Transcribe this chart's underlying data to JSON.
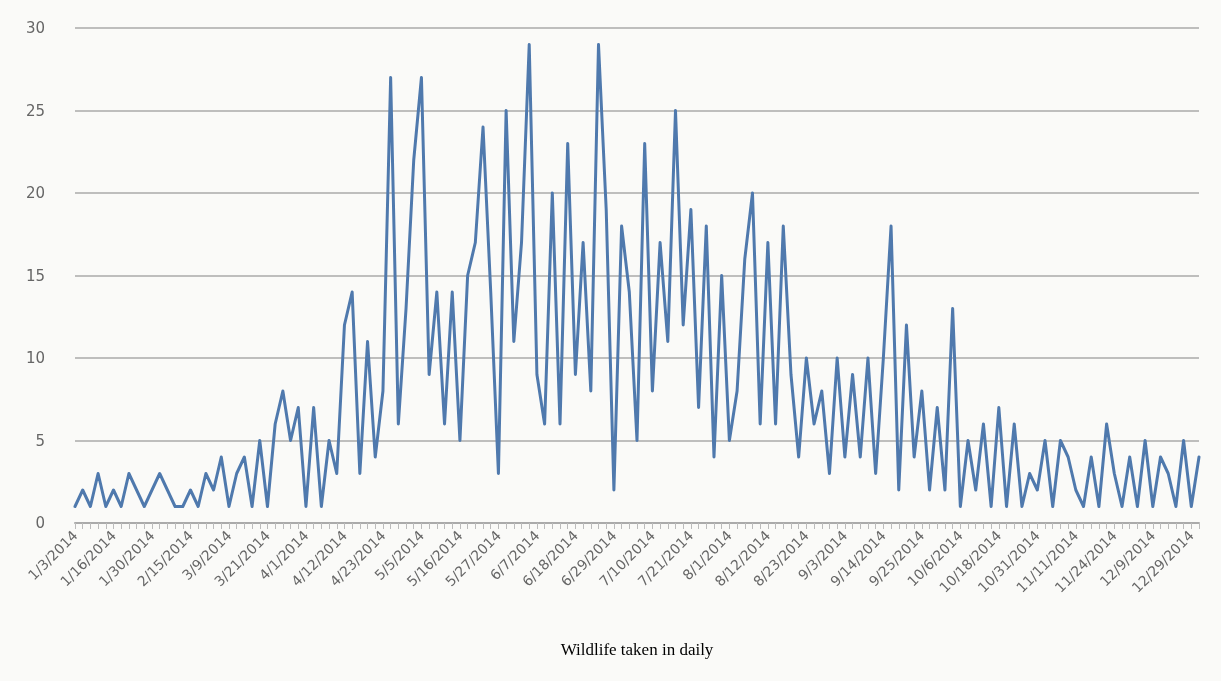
{
  "chart_data": {
    "type": "line",
    "xlabel": "Wildlife taken in daily",
    "categories": [
      "1/3/2014",
      null,
      null,
      null,
      null,
      "1/16/2014",
      null,
      null,
      null,
      null,
      "1/30/2014",
      null,
      null,
      null,
      null,
      "2/15/2014",
      null,
      null,
      null,
      null,
      "3/9/2014",
      null,
      null,
      null,
      null,
      "3/21/2014",
      null,
      null,
      null,
      null,
      "4/1/2014",
      null,
      null,
      null,
      null,
      "4/12/2014",
      null,
      null,
      null,
      null,
      "4/23/2014",
      null,
      null,
      null,
      null,
      "5/5/2014",
      null,
      null,
      null,
      null,
      "5/16/2014",
      null,
      null,
      null,
      null,
      "5/27/2014",
      null,
      null,
      null,
      null,
      "6/7/2014",
      null,
      null,
      null,
      null,
      "6/18/2014",
      null,
      null,
      null,
      null,
      "6/29/2014",
      null,
      null,
      null,
      null,
      "7/10/2014",
      null,
      null,
      null,
      null,
      "7/21/2014",
      null,
      null,
      null,
      null,
      "8/1/2014",
      null,
      null,
      null,
      null,
      "8/12/2014",
      null,
      null,
      null,
      null,
      "8/23/2014",
      null,
      null,
      null,
      null,
      "9/3/2014",
      null,
      null,
      null,
      null,
      "9/14/2014",
      null,
      null,
      null,
      null,
      "9/25/2014",
      null,
      null,
      null,
      null,
      "10/6/2014",
      null,
      null,
      null,
      null,
      "10/18/2014",
      null,
      null,
      null,
      null,
      "10/31/2014",
      null,
      null,
      null,
      null,
      "11/11/2014",
      null,
      null,
      null,
      null,
      "11/24/2014",
      null,
      null,
      null,
      null,
      "12/9/2014",
      null,
      null,
      null,
      null,
      "12/29/2014",
      null
    ],
    "values": [
      1,
      2,
      1,
      3,
      1,
      2,
      1,
      3,
      2,
      1,
      2,
      3,
      2,
      1,
      1,
      2,
      1,
      3,
      2,
      4,
      1,
      3,
      4,
      1,
      5,
      1,
      6,
      8,
      5,
      7,
      1,
      7,
      1,
      5,
      3,
      12,
      14,
      3,
      11,
      4,
      8,
      27,
      6,
      13,
      22,
      27,
      9,
      14,
      6,
      14,
      5,
      15,
      17,
      24,
      14,
      3,
      25,
      11,
      17,
      29,
      9,
      6,
      20,
      6,
      23,
      9,
      17,
      8,
      29,
      19,
      2,
      18,
      14,
      5,
      23,
      8,
      17,
      11,
      25,
      12,
      19,
      7,
      18,
      4,
      15,
      5,
      8,
      16,
      20,
      6,
      17,
      6,
      18,
      9,
      4,
      10,
      6,
      8,
      3,
      10,
      4,
      9,
      4,
      10,
      3,
      10,
      18,
      2,
      12,
      4,
      8,
      2,
      7,
      2,
      13,
      1,
      5,
      2,
      6,
      1,
      7,
      1,
      6,
      1,
      3,
      2,
      5,
      1,
      5,
      4,
      2,
      1,
      4,
      1,
      6,
      3,
      1,
      4,
      1,
      5,
      1,
      4,
      3,
      1,
      5,
      1,
      4
    ],
    "color": "#4f79ad",
    "ylim": [
      0,
      30
    ],
    "yticks": [
      0,
      5,
      10,
      15,
      20,
      25,
      30
    ],
    "grid": "y",
    "marker": "none"
  }
}
